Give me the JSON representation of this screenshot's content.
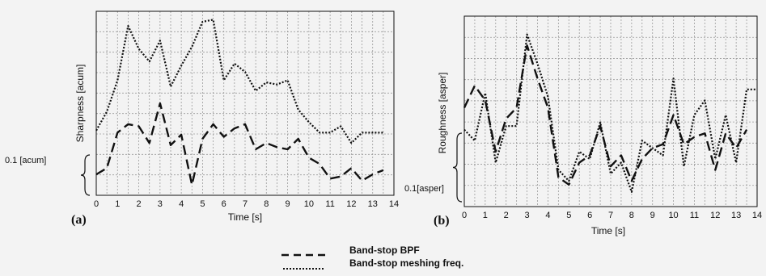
{
  "chart_data": [
    {
      "type": "line",
      "panel_label": "(a)",
      "xlabel": "Time [s]",
      "ylabel": "Sharpness [acum]",
      "scale_bar_label": "0.1 [acum]",
      "xlim": [
        0,
        14
      ],
      "xticks": [
        0,
        1,
        2,
        3,
        4,
        5,
        6,
        7,
        8,
        9,
        10,
        11,
        12,
        13,
        14
      ],
      "grid": true,
      "series": [
        {
          "name": "Band-stop BPF",
          "style": "dashed",
          "x": [
            0,
            0.5,
            1,
            1.5,
            2,
            2.5,
            3,
            3.5,
            4,
            4.5,
            5,
            5.5,
            6,
            6.5,
            7,
            7.5,
            8,
            8.5,
            9,
            9.5,
            10,
            10.5,
            11,
            11.5,
            12,
            12.5,
            13,
            13.5
          ],
          "y": [
            0.18,
            0.21,
            0.38,
            0.42,
            0.41,
            0.33,
            0.52,
            0.32,
            0.37,
            0.13,
            0.35,
            0.42,
            0.36,
            0.4,
            0.42,
            0.3,
            0.33,
            0.31,
            0.3,
            0.35,
            0.26,
            0.23,
            0.16,
            0.17,
            0.21,
            0.15,
            0.18,
            0.2
          ]
        },
        {
          "name": "Band-stop meshing freq.",
          "style": "dotted",
          "x": [
            0,
            0.5,
            1,
            1.5,
            2,
            2.5,
            3,
            3.5,
            4,
            4.5,
            5,
            5.5,
            6,
            6.5,
            7,
            7.5,
            8,
            8.5,
            9,
            9.5,
            10,
            10.5,
            11,
            11.5,
            12,
            12.5,
            13,
            13.5
          ],
          "y": [
            0.39,
            0.48,
            0.63,
            0.89,
            0.78,
            0.72,
            0.82,
            0.6,
            0.7,
            0.79,
            0.91,
            0.92,
            0.63,
            0.71,
            0.67,
            0.58,
            0.62,
            0.61,
            0.63,
            0.49,
            0.43,
            0.38,
            0.38,
            0.41,
            0.33,
            0.38,
            0.38,
            0.38
          ]
        }
      ]
    },
    {
      "type": "line",
      "panel_label": "(b)",
      "xlabel": "Time [s]",
      "ylabel": "Roughness [asper]",
      "scale_bar_label": "0.1[asper]",
      "xlim": [
        0,
        14
      ],
      "xticks": [
        0,
        1,
        2,
        3,
        4,
        5,
        6,
        7,
        8,
        9,
        10,
        11,
        12,
        13,
        14
      ],
      "grid": true,
      "series": [
        {
          "name": "Band-stop BPF",
          "style": "dashed",
          "x": [
            0,
            0.5,
            1,
            1.5,
            2,
            2.5,
            3,
            3.5,
            4,
            4.5,
            5,
            5.5,
            6,
            6.5,
            7,
            7.5,
            8,
            8.5,
            9,
            9.5,
            10,
            10.5,
            11,
            11.5,
            12,
            12.5,
            13,
            13.5
          ],
          "y": [
            0.37,
            0.43,
            0.39,
            0.25,
            0.34,
            0.37,
            0.54,
            0.45,
            0.37,
            0.18,
            0.16,
            0.22,
            0.24,
            0.32,
            0.21,
            0.24,
            0.17,
            0.23,
            0.26,
            0.27,
            0.35,
            0.27,
            0.29,
            0.3,
            0.2,
            0.3,
            0.26,
            0.31
          ]
        },
        {
          "name": "Band-stop meshing freq.",
          "style": "dotted",
          "x": [
            0,
            0.5,
            1,
            1.5,
            2,
            2.5,
            3,
            3.5,
            4,
            4.5,
            5,
            5.5,
            6,
            6.5,
            7,
            7.5,
            8,
            8.5,
            9,
            9.5,
            10,
            10.5,
            11,
            11.5,
            12,
            12.5,
            13,
            13.5,
            14
          ],
          "y": [
            0.31,
            0.28,
            0.41,
            0.22,
            0.32,
            0.32,
            0.57,
            0.49,
            0.4,
            0.2,
            0.17,
            0.25,
            0.23,
            0.33,
            0.19,
            0.22,
            0.14,
            0.28,
            0.26,
            0.24,
            0.45,
            0.21,
            0.35,
            0.39,
            0.23,
            0.35,
            0.22,
            0.42,
            0.42
          ]
        }
      ]
    }
  ],
  "legend": {
    "items": [
      {
        "label": "Band-stop BPF",
        "style": "dashed"
      },
      {
        "label": "Band-stop meshing freq.",
        "style": "dotted"
      }
    ]
  }
}
